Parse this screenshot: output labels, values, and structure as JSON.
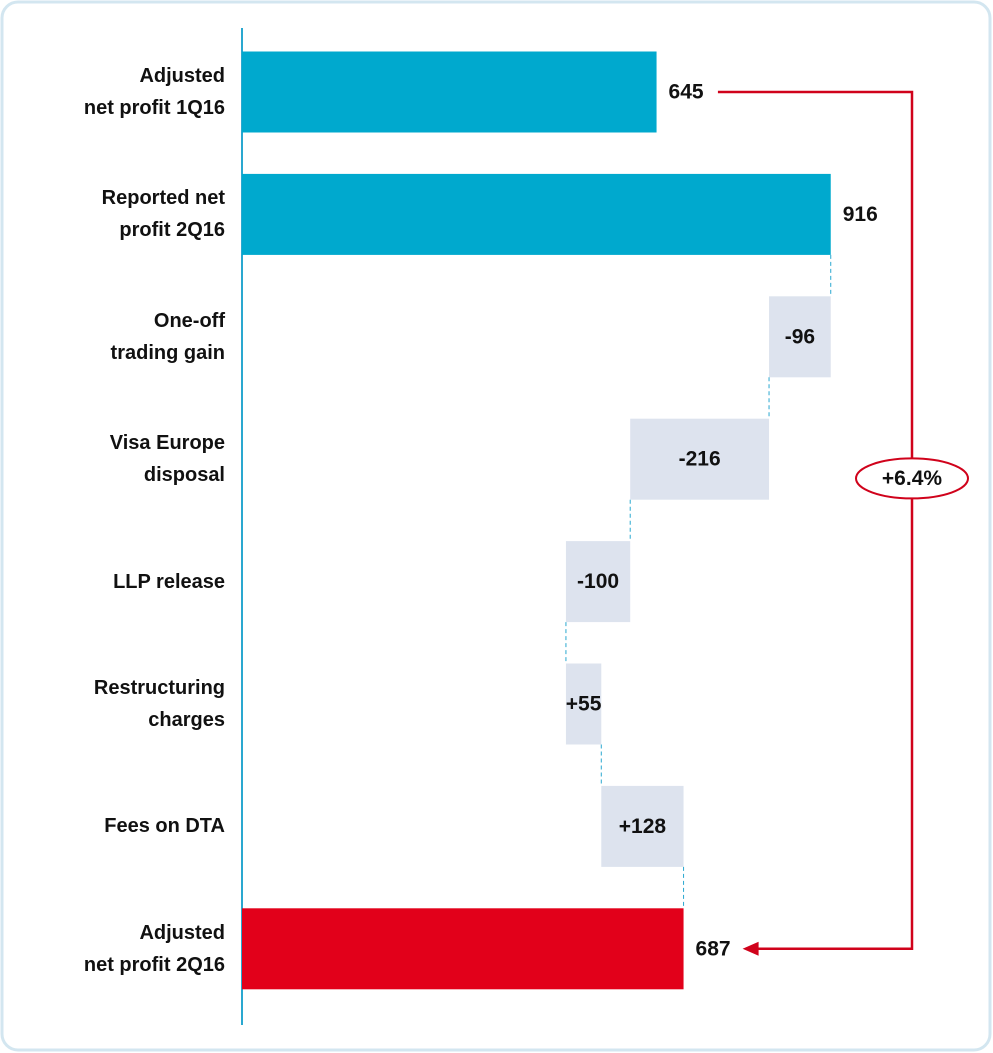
{
  "chart_data": {
    "type": "waterfall",
    "categories": [
      "Adjusted\nnet profit 1Q16",
      "Reported net\nprofit 2Q16",
      "One-off\ntrading gain",
      "Visa Europe\ndisposal",
      "LLP release",
      "Restructuring\ncharges",
      "Fees on DTA",
      "Adjusted\nnet profit 2Q16"
    ],
    "values": [
      645,
      916,
      -96,
      -216,
      -100,
      55,
      128,
      687
    ],
    "value_labels": [
      "645",
      "916",
      "-96",
      "-216",
      "-100",
      "+55",
      "+128",
      "687"
    ],
    "measure": [
      "total",
      "total",
      "relative",
      "relative",
      "relative",
      "relative",
      "relative",
      "total"
    ],
    "colors": [
      "#00a9ce",
      "#00a9ce",
      "#dde3ee",
      "#dde3ee",
      "#dde3ee",
      "#dde3ee",
      "#dde3ee",
      "#e2001a"
    ],
    "xlim": [
      0,
      1100
    ],
    "annotation": "+6.4%",
    "annotation_color": "#d0021b",
    "axis_color": "#2aa8d0"
  }
}
